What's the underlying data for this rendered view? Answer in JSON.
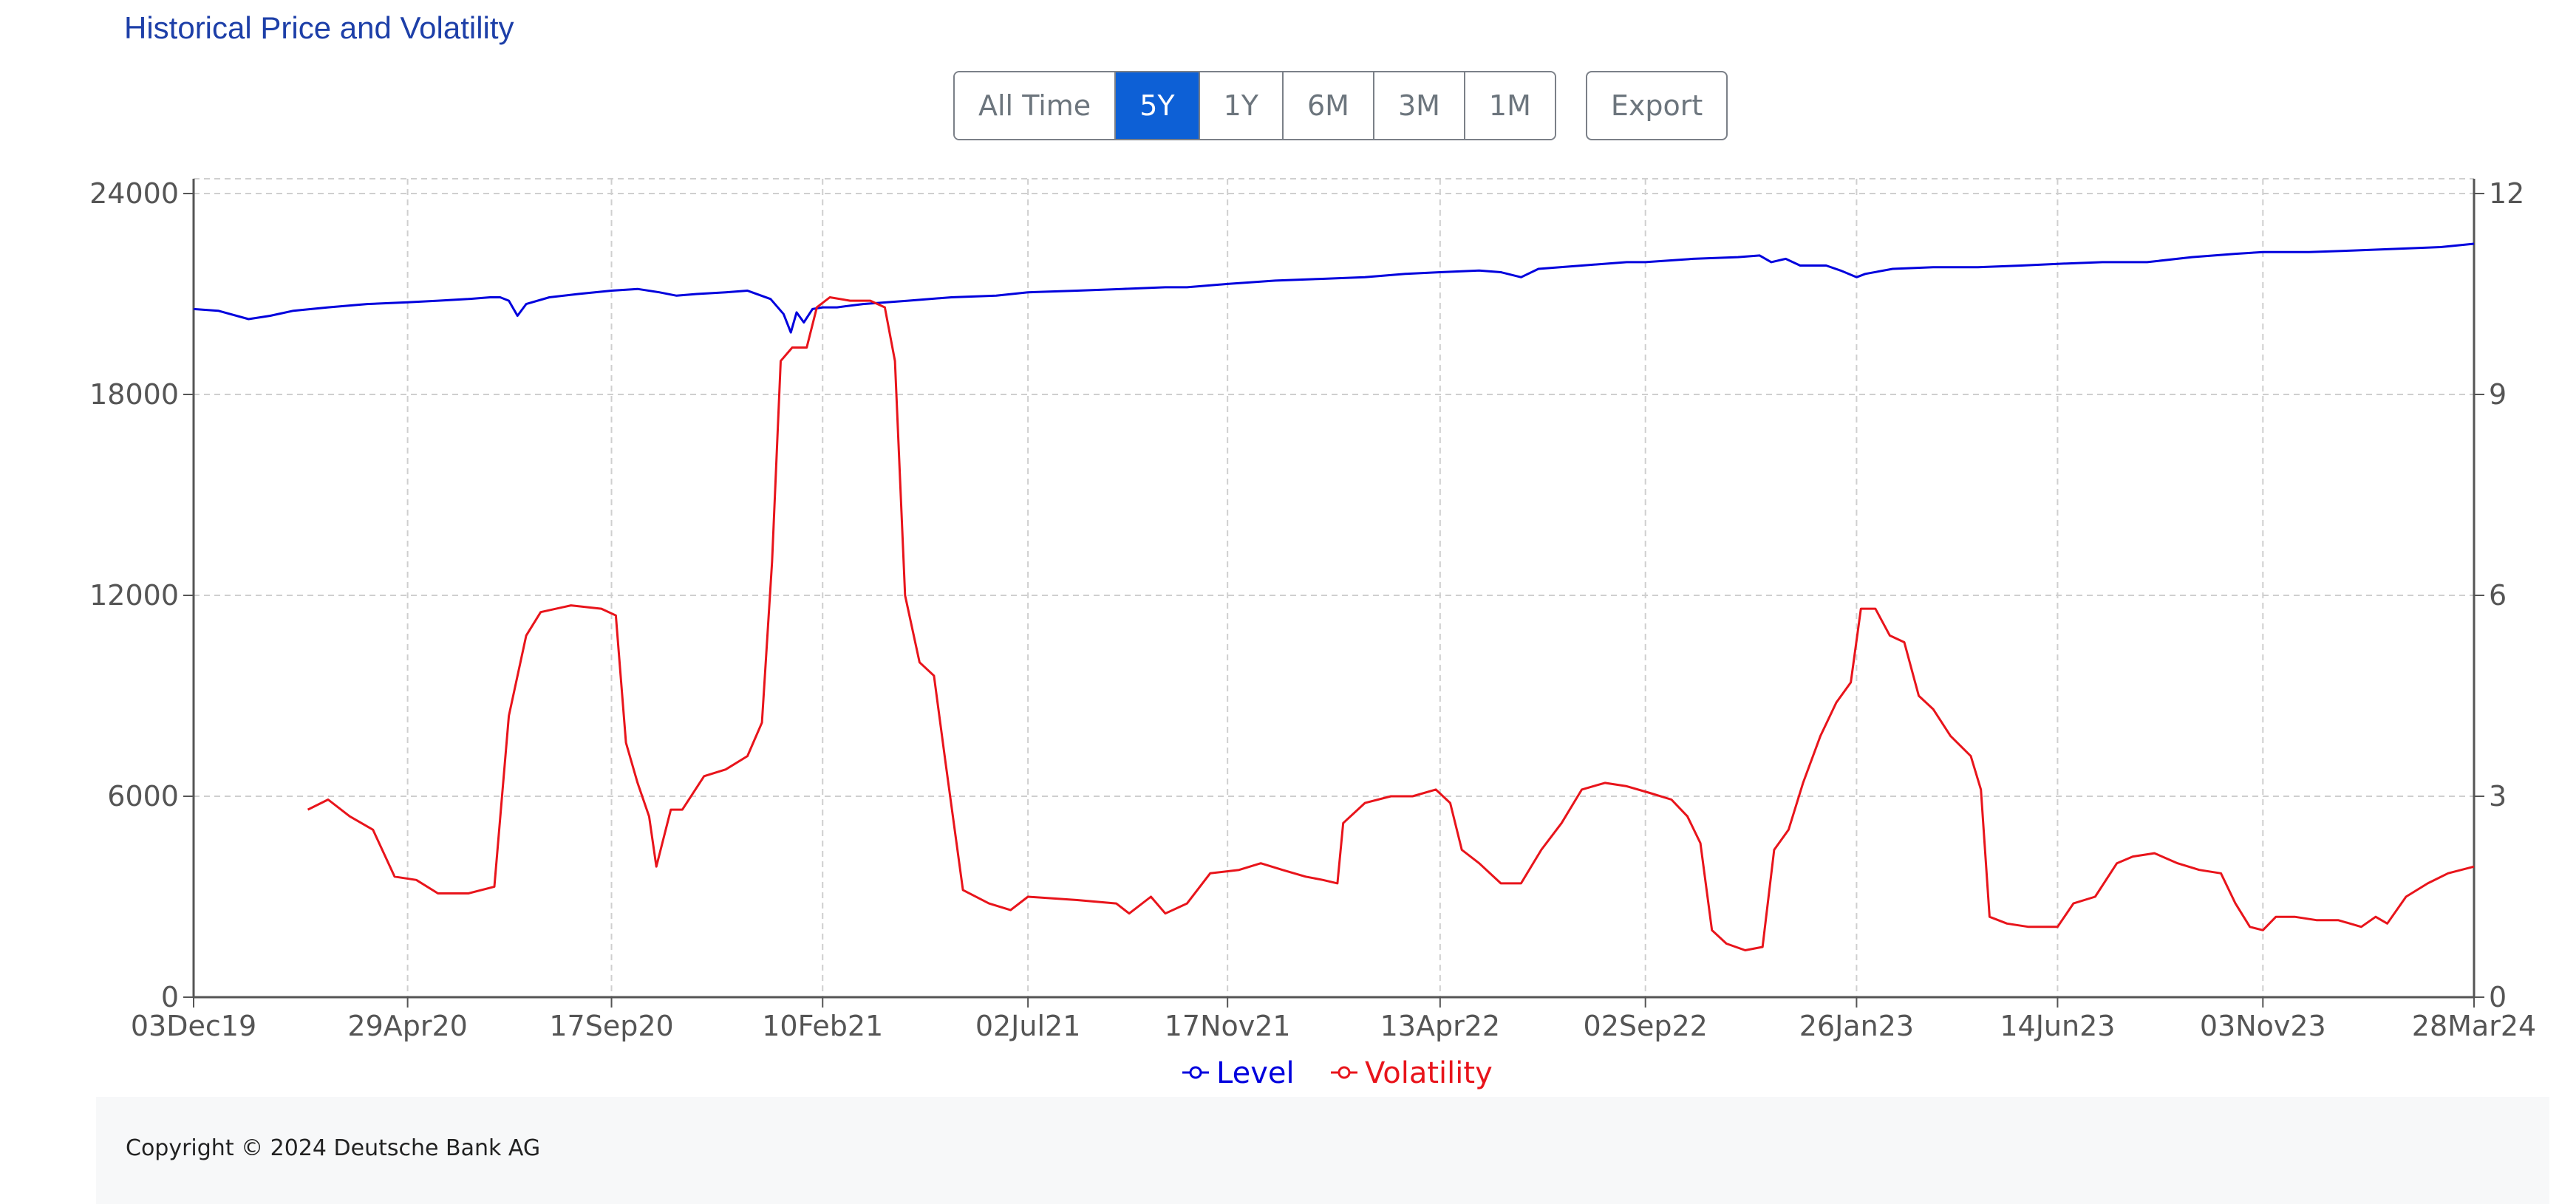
{
  "page_title": "Historical Price and Volatility",
  "range_buttons": [
    {
      "label": "All Time",
      "active": false
    },
    {
      "label": "5Y",
      "active": true
    },
    {
      "label": "1Y",
      "active": false
    },
    {
      "label": "6M",
      "active": false
    },
    {
      "label": "3M",
      "active": false
    },
    {
      "label": "1M",
      "active": false
    }
  ],
  "export_label": "Export",
  "footer": {
    "copyright": "Copyright © 2024 Deutsche Bank AG"
  },
  "colors": {
    "level": "#0000dd",
    "volatility": "#e8141b",
    "active_button": "#0d60d6",
    "title": "#1d3fa8"
  },
  "chart_data": {
    "type": "line",
    "x_tick_labels": [
      "03Dec19",
      "29Apr20",
      "17Sep20",
      "10Feb21",
      "02Jul21",
      "17Nov21",
      "13Apr22",
      "02Sep22",
      "26Jan23",
      "14Jun23",
      "03Nov23",
      "28Mar24"
    ],
    "x_ticks": [
      "2019-12-03",
      "2020-04-29",
      "2020-09-17",
      "2021-02-10",
      "2021-07-02",
      "2021-11-17",
      "2022-04-13",
      "2022-09-02",
      "2023-01-26",
      "2023-06-14",
      "2023-11-03",
      "2024-03-28"
    ],
    "xlim": [
      "2019-12-03",
      "2024-03-28"
    ],
    "y_left": {
      "ticks": [
        "0",
        "6000",
        "12000",
        "18000",
        "24000"
      ],
      "range": [
        0,
        24000
      ]
    },
    "y_right": {
      "ticks": [
        "0",
        "3",
        "6",
        "9",
        "12"
      ],
      "range": [
        0,
        12
      ]
    },
    "grid": true,
    "legend_position": "bottom-center",
    "series": [
      {
        "name": "Level",
        "axis": "left",
        "points": [
          [
            "2019-12-03",
            20550
          ],
          [
            "2019-12-20",
            20500
          ],
          [
            "2020-01-10",
            20250
          ],
          [
            "2020-01-25",
            20350
          ],
          [
            "2020-02-10",
            20500
          ],
          [
            "2020-03-05",
            20600
          ],
          [
            "2020-04-01",
            20700
          ],
          [
            "2020-04-29",
            20750
          ],
          [
            "2020-05-20",
            20800
          ],
          [
            "2020-06-10",
            20850
          ],
          [
            "2020-06-25",
            20900
          ],
          [
            "2020-07-02",
            20900
          ],
          [
            "2020-07-08",
            20800
          ],
          [
            "2020-07-14",
            20350
          ],
          [
            "2020-07-20",
            20700
          ],
          [
            "2020-08-05",
            20900
          ],
          [
            "2020-08-25",
            21000
          ],
          [
            "2020-09-17",
            21100
          ],
          [
            "2020-10-05",
            21150
          ],
          [
            "2020-10-20",
            21050
          ],
          [
            "2020-11-01",
            20950
          ],
          [
            "2020-11-15",
            21000
          ],
          [
            "2020-12-05",
            21050
          ],
          [
            "2020-12-20",
            21100
          ],
          [
            "2021-01-05",
            20850
          ],
          [
            "2021-01-14",
            20400
          ],
          [
            "2021-01-19",
            19850
          ],
          [
            "2021-01-23",
            20450
          ],
          [
            "2021-01-28",
            20150
          ],
          [
            "2021-02-03",
            20550
          ],
          [
            "2021-02-10",
            20600
          ],
          [
            "2021-02-20",
            20600
          ],
          [
            "2021-03-10",
            20700
          ],
          [
            "2021-04-10",
            20800
          ],
          [
            "2021-05-10",
            20900
          ],
          [
            "2021-06-10",
            20950
          ],
          [
            "2021-07-02",
            21050
          ],
          [
            "2021-08-05",
            21100
          ],
          [
            "2021-09-05",
            21150
          ],
          [
            "2021-10-05",
            21200
          ],
          [
            "2021-10-20",
            21200
          ],
          [
            "2021-11-17",
            21300
          ],
          [
            "2021-12-20",
            21400
          ],
          [
            "2022-01-20",
            21450
          ],
          [
            "2022-02-20",
            21500
          ],
          [
            "2022-03-20",
            21600
          ],
          [
            "2022-04-13",
            21650
          ],
          [
            "2022-05-10",
            21700
          ],
          [
            "2022-05-25",
            21650
          ],
          [
            "2022-06-08",
            21500
          ],
          [
            "2022-06-20",
            21750
          ],
          [
            "2022-07-20",
            21850
          ],
          [
            "2022-08-20",
            21950
          ],
          [
            "2022-09-02",
            21950
          ],
          [
            "2022-10-05",
            22050
          ],
          [
            "2022-11-05",
            22100
          ],
          [
            "2022-11-20",
            22150
          ],
          [
            "2022-11-28",
            21950
          ],
          [
            "2022-12-08",
            22050
          ],
          [
            "2022-12-18",
            21850
          ],
          [
            "2023-01-05",
            21850
          ],
          [
            "2023-01-15",
            21700
          ],
          [
            "2023-01-26",
            21500
          ],
          [
            "2023-02-01",
            21600
          ],
          [
            "2023-02-20",
            21750
          ],
          [
            "2023-03-20",
            21800
          ],
          [
            "2023-04-20",
            21800
          ],
          [
            "2023-05-20",
            21850
          ],
          [
            "2023-06-14",
            21900
          ],
          [
            "2023-07-15",
            21950
          ],
          [
            "2023-08-15",
            21950
          ],
          [
            "2023-09-15",
            22100
          ],
          [
            "2023-10-15",
            22200
          ],
          [
            "2023-11-03",
            22250
          ],
          [
            "2023-12-05",
            22250
          ],
          [
            "2024-01-05",
            22300
          ],
          [
            "2024-02-05",
            22350
          ],
          [
            "2024-03-05",
            22400
          ],
          [
            "2024-03-28",
            22500
          ]
        ]
      },
      {
        "name": "Volatility",
        "axis": "right",
        "points": [
          [
            "2020-02-20",
            2.8
          ],
          [
            "2020-03-05",
            2.95
          ],
          [
            "2020-03-20",
            2.7
          ],
          [
            "2020-04-05",
            2.5
          ],
          [
            "2020-04-20",
            1.8
          ],
          [
            "2020-05-05",
            1.75
          ],
          [
            "2020-05-20",
            1.55
          ],
          [
            "2020-06-10",
            1.55
          ],
          [
            "2020-06-28",
            1.65
          ],
          [
            "2020-07-08",
            4.2
          ],
          [
            "2020-07-20",
            5.4
          ],
          [
            "2020-07-30",
            5.75
          ],
          [
            "2020-08-20",
            5.85
          ],
          [
            "2020-09-10",
            5.8
          ],
          [
            "2020-09-20",
            5.7
          ],
          [
            "2020-09-27",
            3.8
          ],
          [
            "2020-10-05",
            3.2
          ],
          [
            "2020-10-13",
            2.7
          ],
          [
            "2020-10-18",
            1.95
          ],
          [
            "2020-10-28",
            2.8
          ],
          [
            "2020-11-05",
            2.8
          ],
          [
            "2020-11-20",
            3.3
          ],
          [
            "2020-12-05",
            3.4
          ],
          [
            "2020-12-20",
            3.6
          ],
          [
            "2020-12-30",
            4.1
          ],
          [
            "2021-01-06",
            6.5
          ],
          [
            "2021-01-12",
            9.5
          ],
          [
            "2021-01-20",
            9.7
          ],
          [
            "2021-01-30",
            9.7
          ],
          [
            "2021-02-06",
            10.3
          ],
          [
            "2021-02-15",
            10.45
          ],
          [
            "2021-03-01",
            10.4
          ],
          [
            "2021-03-15",
            10.4
          ],
          [
            "2021-03-25",
            10.3
          ],
          [
            "2021-04-01",
            9.5
          ],
          [
            "2021-04-08",
            6.0
          ],
          [
            "2021-04-18",
            5.0
          ],
          [
            "2021-04-28",
            4.8
          ],
          [
            "2021-05-06",
            3.5
          ],
          [
            "2021-05-18",
            1.6
          ],
          [
            "2021-06-05",
            1.4
          ],
          [
            "2021-06-20",
            1.3
          ],
          [
            "2021-07-02",
            1.5
          ],
          [
            "2021-08-05",
            1.45
          ],
          [
            "2021-09-01",
            1.4
          ],
          [
            "2021-09-10",
            1.25
          ],
          [
            "2021-09-25",
            1.5
          ],
          [
            "2021-10-05",
            1.25
          ],
          [
            "2021-10-20",
            1.4
          ],
          [
            "2021-11-05",
            1.85
          ],
          [
            "2021-11-25",
            1.9
          ],
          [
            "2021-12-10",
            2.0
          ],
          [
            "2021-12-25",
            1.9
          ],
          [
            "2022-01-10",
            1.8
          ],
          [
            "2022-01-22",
            1.75
          ],
          [
            "2022-02-01",
            1.7
          ],
          [
            "2022-02-05",
            2.6
          ],
          [
            "2022-02-20",
            2.9
          ],
          [
            "2022-03-10",
            3.0
          ],
          [
            "2022-03-25",
            3.0
          ],
          [
            "2022-04-10",
            3.1
          ],
          [
            "2022-04-20",
            2.9
          ],
          [
            "2022-04-28",
            2.2
          ],
          [
            "2022-05-10",
            2.0
          ],
          [
            "2022-05-25",
            1.7
          ],
          [
            "2022-06-08",
            1.7
          ],
          [
            "2022-06-22",
            2.2
          ],
          [
            "2022-07-06",
            2.6
          ],
          [
            "2022-07-20",
            3.1
          ],
          [
            "2022-08-05",
            3.2
          ],
          [
            "2022-08-20",
            3.15
          ],
          [
            "2022-09-05",
            3.05
          ],
          [
            "2022-09-20",
            2.95
          ],
          [
            "2022-10-01",
            2.7
          ],
          [
            "2022-10-10",
            2.3
          ],
          [
            "2022-10-18",
            1.0
          ],
          [
            "2022-10-28",
            0.8
          ],
          [
            "2022-11-10",
            0.7
          ],
          [
            "2022-11-22",
            0.75
          ],
          [
            "2022-11-30",
            2.2
          ],
          [
            "2022-12-10",
            2.5
          ],
          [
            "2022-12-20",
            3.2
          ],
          [
            "2023-01-01",
            3.9
          ],
          [
            "2023-01-12",
            4.4
          ],
          [
            "2023-01-22",
            4.7
          ],
          [
            "2023-01-29",
            5.8
          ],
          [
            "2023-02-08",
            5.8
          ],
          [
            "2023-02-18",
            5.4
          ],
          [
            "2023-02-28",
            5.3
          ],
          [
            "2023-03-10",
            4.5
          ],
          [
            "2023-03-20",
            4.3
          ],
          [
            "2023-04-01",
            3.9
          ],
          [
            "2023-04-15",
            3.6
          ],
          [
            "2023-04-22",
            3.1
          ],
          [
            "2023-04-28",
            1.2
          ],
          [
            "2023-05-10",
            1.1
          ],
          [
            "2023-05-25",
            1.05
          ],
          [
            "2023-06-14",
            1.05
          ],
          [
            "2023-06-25",
            1.4
          ],
          [
            "2023-07-10",
            1.5
          ],
          [
            "2023-07-25",
            2.0
          ],
          [
            "2023-08-05",
            2.1
          ],
          [
            "2023-08-20",
            2.15
          ],
          [
            "2023-09-05",
            2.0
          ],
          [
            "2023-09-20",
            1.9
          ],
          [
            "2023-10-05",
            1.85
          ],
          [
            "2023-10-15",
            1.4
          ],
          [
            "2023-10-25",
            1.05
          ],
          [
            "2023-11-03",
            1.0
          ],
          [
            "2023-11-12",
            1.2
          ],
          [
            "2023-11-25",
            1.2
          ],
          [
            "2023-12-10",
            1.15
          ],
          [
            "2023-12-25",
            1.15
          ],
          [
            "2024-01-10",
            1.05
          ],
          [
            "2024-01-20",
            1.2
          ],
          [
            "2024-01-28",
            1.1
          ],
          [
            "2024-02-10",
            1.5
          ],
          [
            "2024-02-25",
            1.7
          ],
          [
            "2024-03-10",
            1.85
          ],
          [
            "2024-03-28",
            1.95
          ]
        ]
      }
    ]
  }
}
